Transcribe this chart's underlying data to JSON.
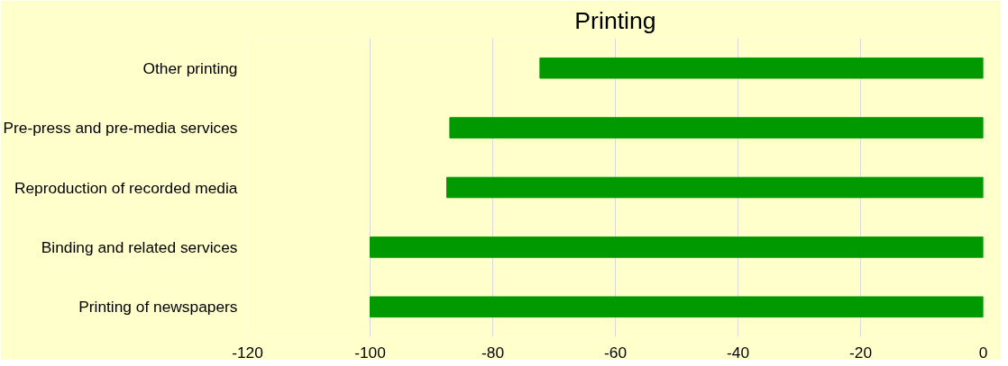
{
  "chart_data": {
    "type": "bar",
    "orientation": "horizontal",
    "title": "Printing",
    "categories": [
      "Other printing",
      "Pre-press and pre-media services",
      "Reproduction of recorded media",
      "Binding and related services",
      "Printing of newspapers"
    ],
    "values": [
      -72.3,
      -87,
      -87.5,
      -100,
      -100
    ],
    "color": "#009900",
    "xlim": [
      -120,
      0
    ],
    "xticks": [
      -120,
      -100,
      -80,
      -60,
      -40,
      -20,
      0
    ],
    "grid": "x"
  }
}
